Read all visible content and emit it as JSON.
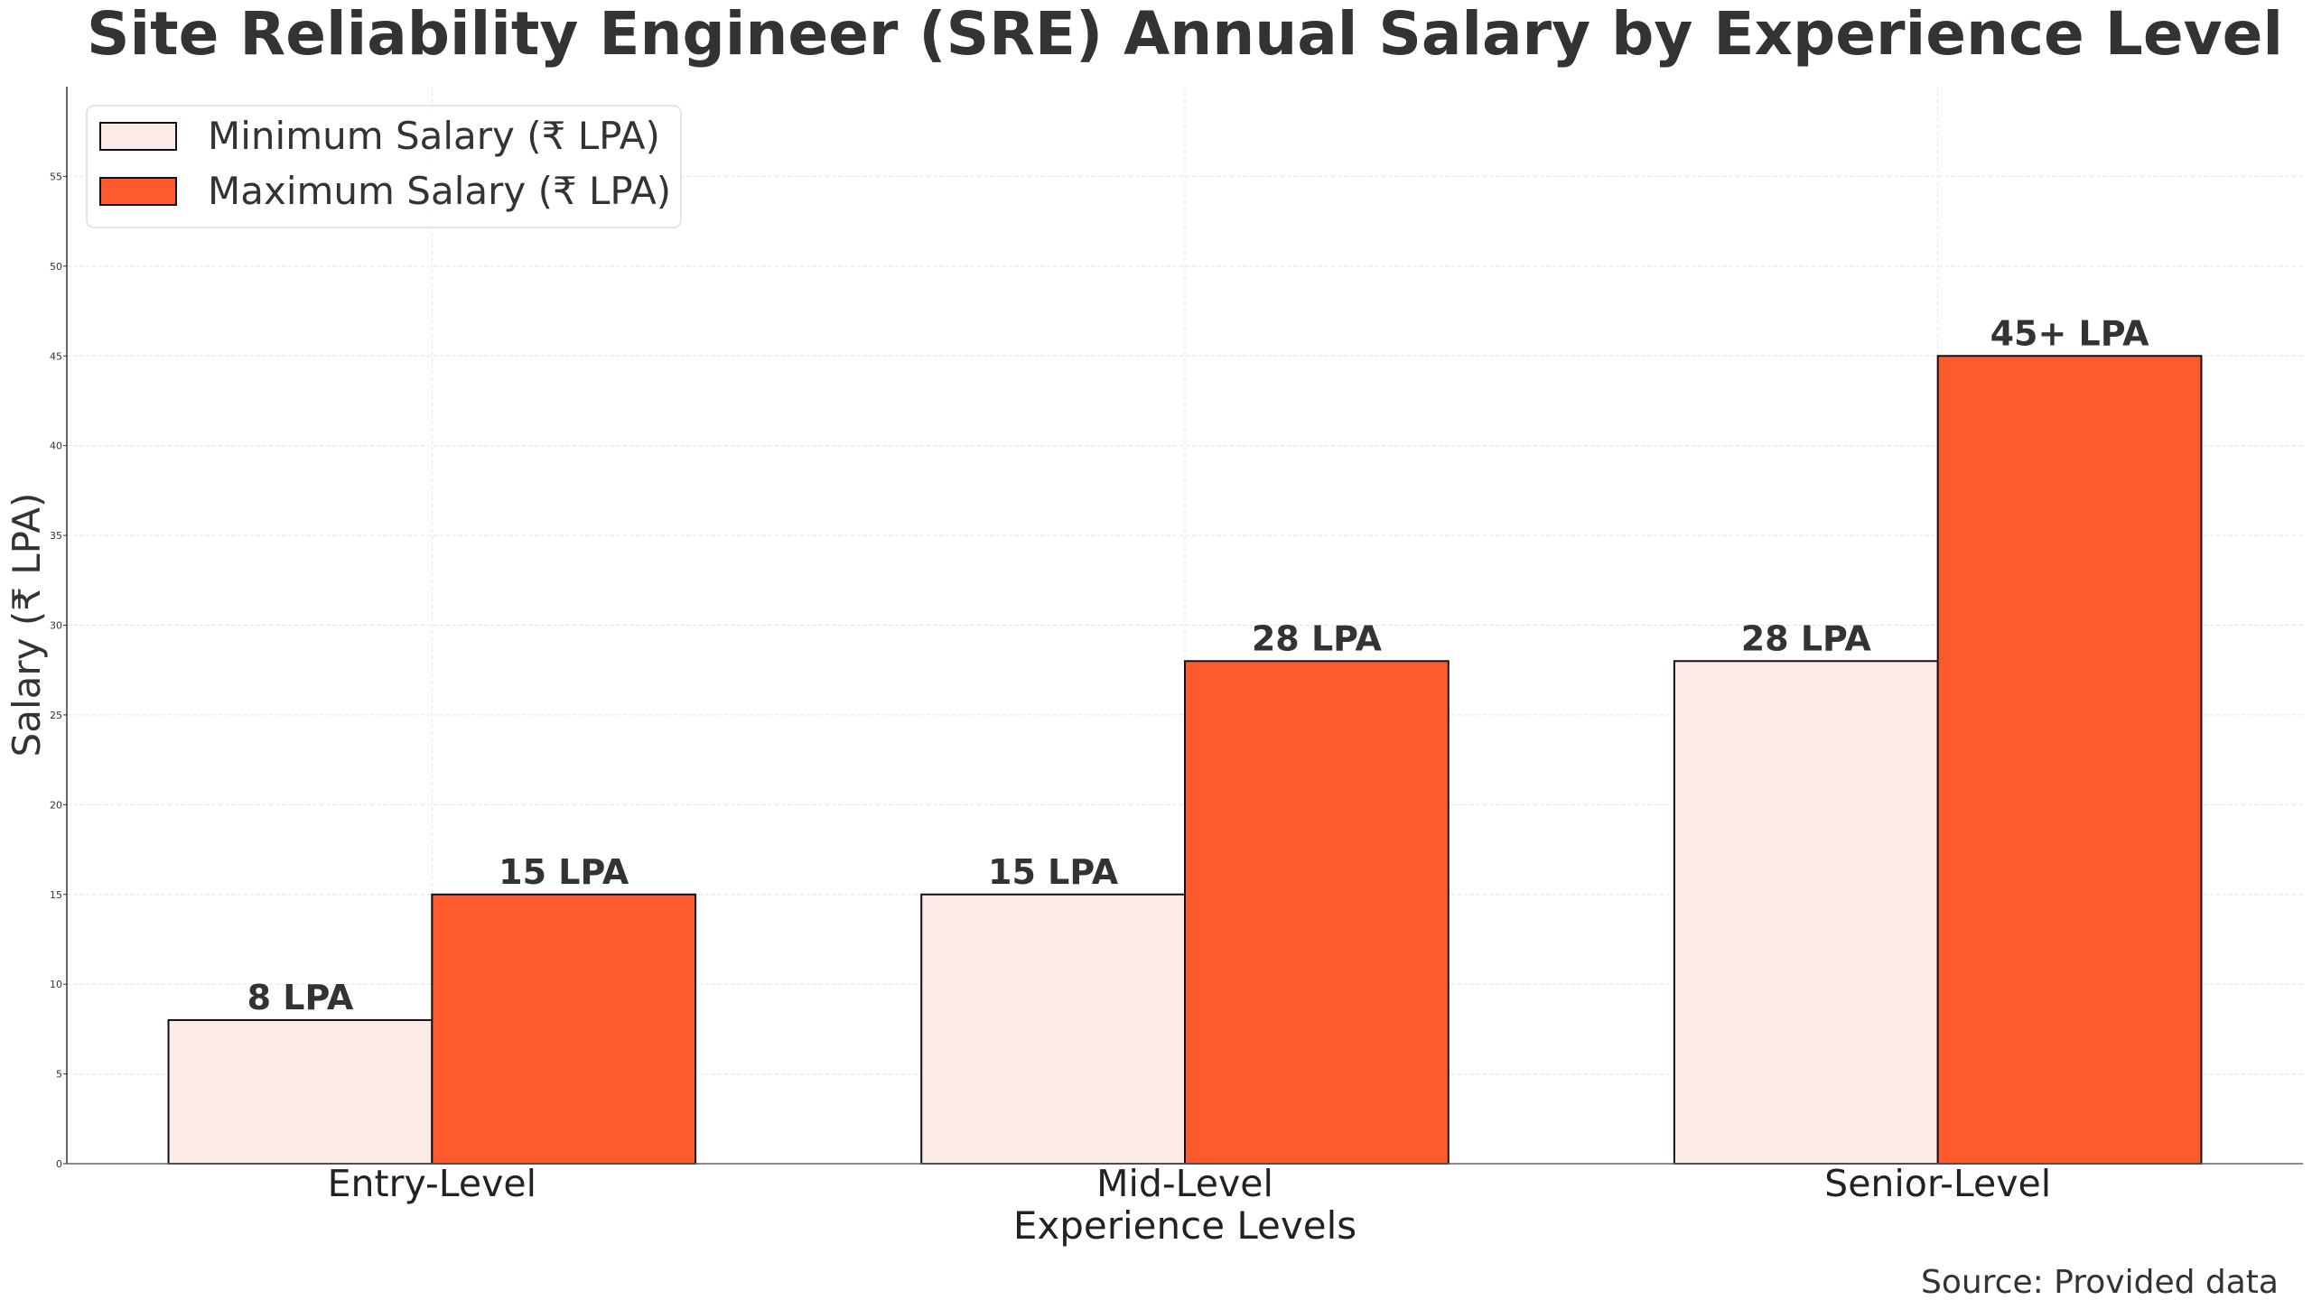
{
  "chart_data": {
    "type": "bar",
    "title": "Site Reliability Engineer (SRE) Annual Salary by Experience Level",
    "xlabel": "Experience Levels",
    "ylabel": "Salary (₹ LPA)",
    "categories": [
      "Entry-Level",
      "Mid-Level",
      "Senior-Level"
    ],
    "series": [
      {
        "name": "Minimum Salary (₹ LPA)",
        "values": [
          8,
          15,
          28
        ],
        "labels": [
          "8 LPA",
          "15 LPA",
          "28 LPA"
        ],
        "color": "#FDEBE9"
      },
      {
        "name": "Maximum Salary (₹ LPA)",
        "values": [
          15,
          28,
          45
        ],
        "labels": [
          "15 LPA",
          "28 LPA",
          "45+ LPA"
        ],
        "color": "#FF5A2D"
      }
    ],
    "ylim": [
      0,
      60
    ],
    "yticks": [
      0,
      5,
      10,
      15,
      20,
      25,
      30,
      35,
      40,
      45,
      50,
      55
    ],
    "grid": true,
    "legend_position": "top-left",
    "annotation": "Source: Provided data"
  }
}
